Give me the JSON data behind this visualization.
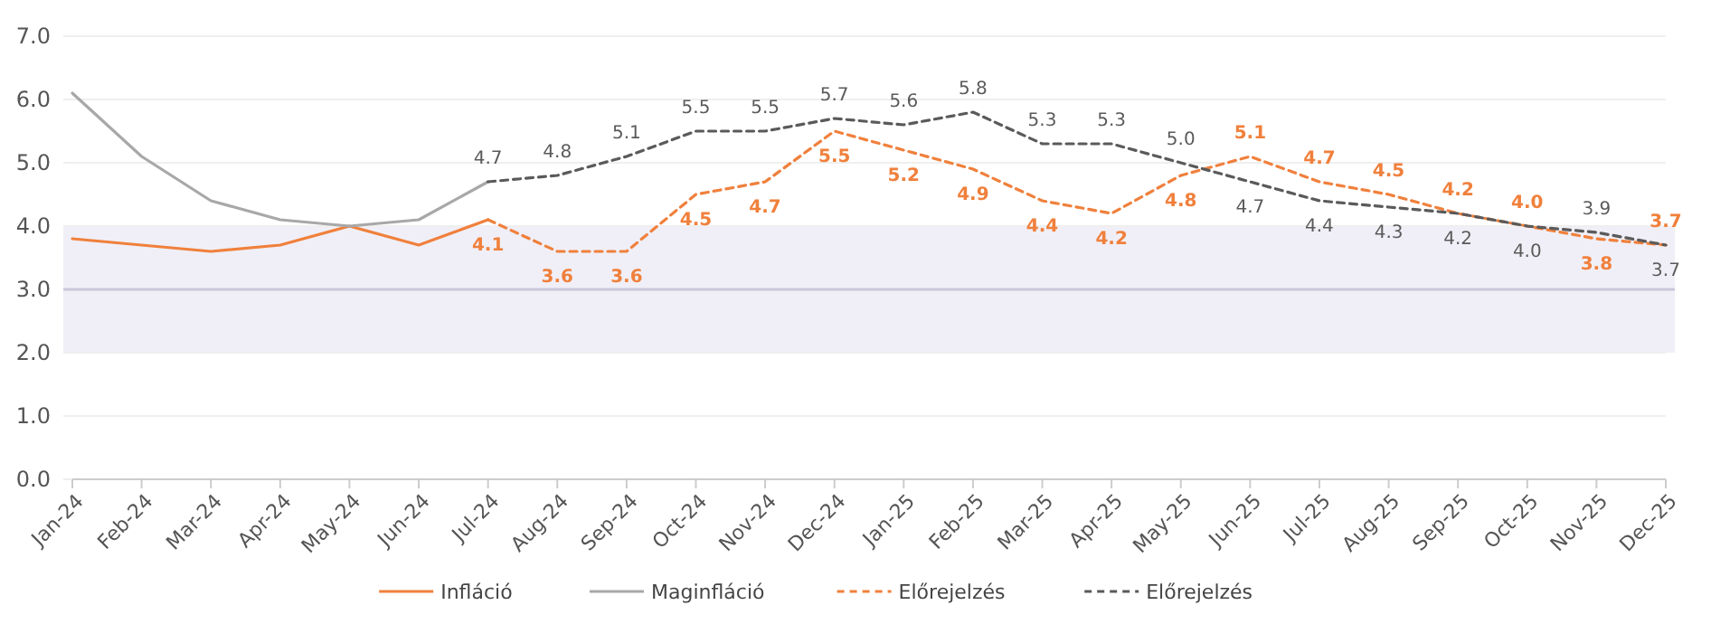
{
  "chart_data": {
    "type": "line",
    "categories": [
      "Jan-24",
      "Feb-24",
      "Mar-24",
      "Apr-24",
      "May-24",
      "Jun-24",
      "Jul-24",
      "Aug-24",
      "Sep-24",
      "Oct-24",
      "Nov-24",
      "Dec-24",
      "Jan-25",
      "Feb-25",
      "Mar-25",
      "Apr-25",
      "May-25",
      "Jun-25",
      "Jul-25",
      "Aug-25",
      "Sep-25",
      "Oct-25",
      "Nov-25",
      "Dec-25"
    ],
    "series": [
      {
        "name": "Infláció",
        "color": "#f0803c",
        "line_style": "solid",
        "values": [
          3.8,
          3.7,
          3.6,
          3.7,
          4.0,
          3.7,
          4.1,
          null,
          null,
          null,
          null,
          null,
          null,
          null,
          null,
          null,
          null,
          null,
          null,
          null,
          null,
          null,
          null,
          null
        ]
      },
      {
        "name": "Maginfláció",
        "color": "#a8a8a8",
        "line_style": "solid",
        "values": [
          6.1,
          5.1,
          4.4,
          4.1,
          4.0,
          4.1,
          4.7,
          null,
          null,
          null,
          null,
          null,
          null,
          null,
          null,
          null,
          null,
          null,
          null,
          null,
          null,
          null,
          null,
          null
        ]
      },
      {
        "name": "Előrejelzés",
        "color": "#f0803c",
        "line_style": "dashed",
        "values": [
          null,
          null,
          null,
          null,
          null,
          null,
          4.1,
          3.6,
          3.6,
          4.5,
          4.7,
          5.5,
          5.2,
          4.9,
          4.4,
          4.2,
          4.8,
          5.1,
          4.7,
          4.5,
          4.2,
          4.0,
          3.8,
          3.7
        ],
        "value_labels": [
          null,
          null,
          null,
          null,
          null,
          null,
          "4.1",
          "3.6",
          "3.6",
          "4.5",
          "4.7",
          "5.5",
          "5.2",
          "4.9",
          "4.4",
          "4.2",
          "4.8",
          "5.1",
          "4.7",
          "4.5",
          "4.2",
          "4.0",
          "3.8",
          "3.7"
        ]
      },
      {
        "name": "Előrejelzés",
        "color": "#5a5a5a",
        "line_style": "dashed",
        "values": [
          null,
          null,
          null,
          null,
          null,
          null,
          4.7,
          4.8,
          5.1,
          5.5,
          5.5,
          5.7,
          5.6,
          5.8,
          5.3,
          5.3,
          5.0,
          4.7,
          4.4,
          4.3,
          4.2,
          4.0,
          3.9,
          3.7
        ],
        "value_labels": [
          null,
          null,
          null,
          null,
          null,
          null,
          "4.7",
          "4.8",
          "5.1",
          "5.5",
          "5.5",
          "5.7",
          "5.6",
          "5.8",
          "5.3",
          "5.3",
          "5.0",
          "4.7",
          "4.4",
          "4.3",
          "4.2",
          "4.0",
          "3.9",
          "3.7"
        ]
      }
    ],
    "ylim": [
      0,
      7
    ],
    "yticks": [
      {
        "value": 0,
        "label": "0.0"
      },
      {
        "value": 1,
        "label": "1.0"
      },
      {
        "value": 2,
        "label": "2.0"
      },
      {
        "value": 3,
        "label": "3.0"
      },
      {
        "value": 4,
        "label": "4.0"
      },
      {
        "value": 5,
        "label": "5.0"
      },
      {
        "value": 6,
        "label": "6.0"
      },
      {
        "value": 7,
        "label": "7.0"
      }
    ],
    "bands": [
      {
        "axis": "y",
        "from": 2,
        "to": 4,
        "color": "#f0eff7"
      }
    ],
    "ref_lines": [
      {
        "axis": "y",
        "value": 3,
        "color": "#c9c8da"
      }
    ],
    "grid": "y",
    "legend": "bottom"
  }
}
